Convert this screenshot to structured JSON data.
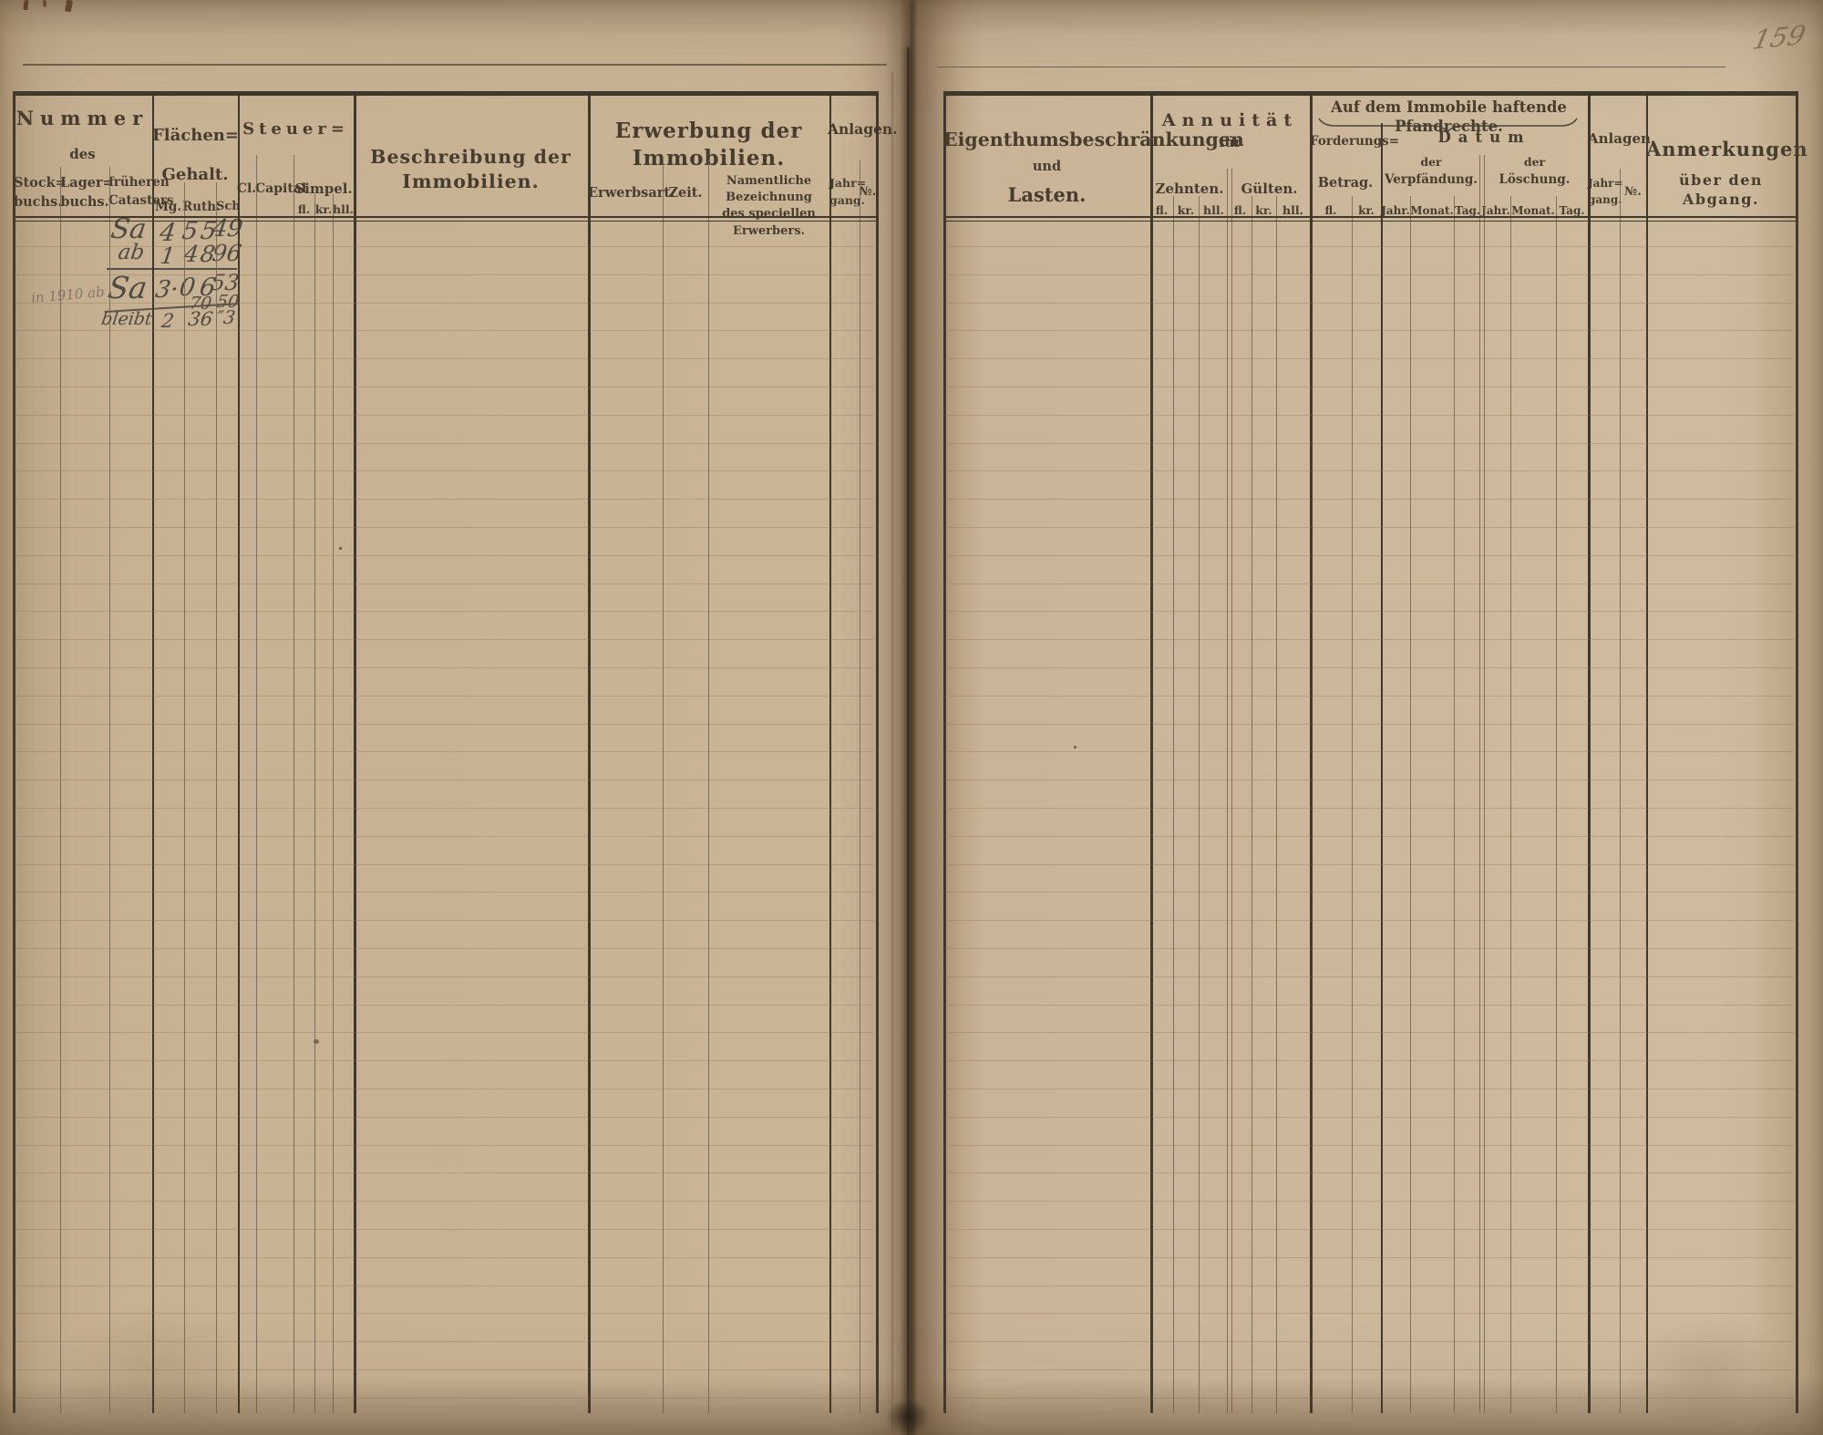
{
  "folio": "159",
  "left": {
    "nummer_title": "Nummer",
    "nummer_des": "des",
    "stockbuchs": "Stock=\nbuchs.",
    "lagerbuchs": "Lager=\nbuchs.",
    "catasters": "früheren\nCatasters",
    "flaechen": "Flächen=",
    "gehalt": "Gehalt.",
    "mg": "Mg.",
    "ruth": "Ruth.",
    "sch": "Sch",
    "steuer": "Steuer=",
    "cl": "Cl.",
    "capital": "Capital",
    "simpel": "Simpel.",
    "fl": "fl.",
    "kr": "kr.",
    "hll": "hll.",
    "beschreibung": "Beschreibung der Immobilien.",
    "erwerbung": "Erwerbung der Immobilien.",
    "erwerbsart": "Erwerbsart.",
    "zeit": "Zeit.",
    "namentliche": "Namentliche Bezeichnung\ndes speciellen Erwerbers.",
    "anlagen": "Anlagen.",
    "jahrgang": "Jahr=\ngang.",
    "no": "№."
  },
  "right": {
    "eigenthums1": "Eigenthumsbeschränkungen",
    "eigenthums2": "und",
    "eigenthums3": "Lasten.",
    "annuitaet": "Annuität",
    "fuer": "für",
    "zehnten": "Zehnten.",
    "guelten": "Gülten.",
    "fl": "fl.",
    "kr": "kr.",
    "hll": "hll.",
    "pfandrechte": "Auf dem Immobile haftende Pfandrechte.",
    "forderungs": "Forderungs=",
    "betrag": "Betrag.",
    "datum": "Datum",
    "der": "der",
    "verpfaendung": "Verpfändung.",
    "loeschung": "Löschung.",
    "jahr": "Jahr.",
    "monat": "Monat.",
    "tag": "Tag.",
    "anlagen": "Anlagen.",
    "jahrgang": "Jahr=\ngang.",
    "no": "№.",
    "anmerkungen1": "Anmerkungen",
    "anmerkungen2": "über den Abgang."
  },
  "handwriting": {
    "pencil_note": "in 1910 ab",
    "row1": {
      "label": "Sa",
      "mg": "4",
      "ruth": "55",
      "sch": "49"
    },
    "row2": {
      "label": "ab",
      "mg": "1",
      "ruth": "48",
      "sch": "96"
    },
    "row3": {
      "label": "Sa",
      "mg": "3·",
      "ruth": "06",
      "sch": "53"
    },
    "row4": {
      "ruth": "70",
      "sch": "50"
    },
    "row5": {
      "label": "bleibt",
      "mg": "2",
      "ruth": "36",
      "sch": "″3"
    }
  }
}
